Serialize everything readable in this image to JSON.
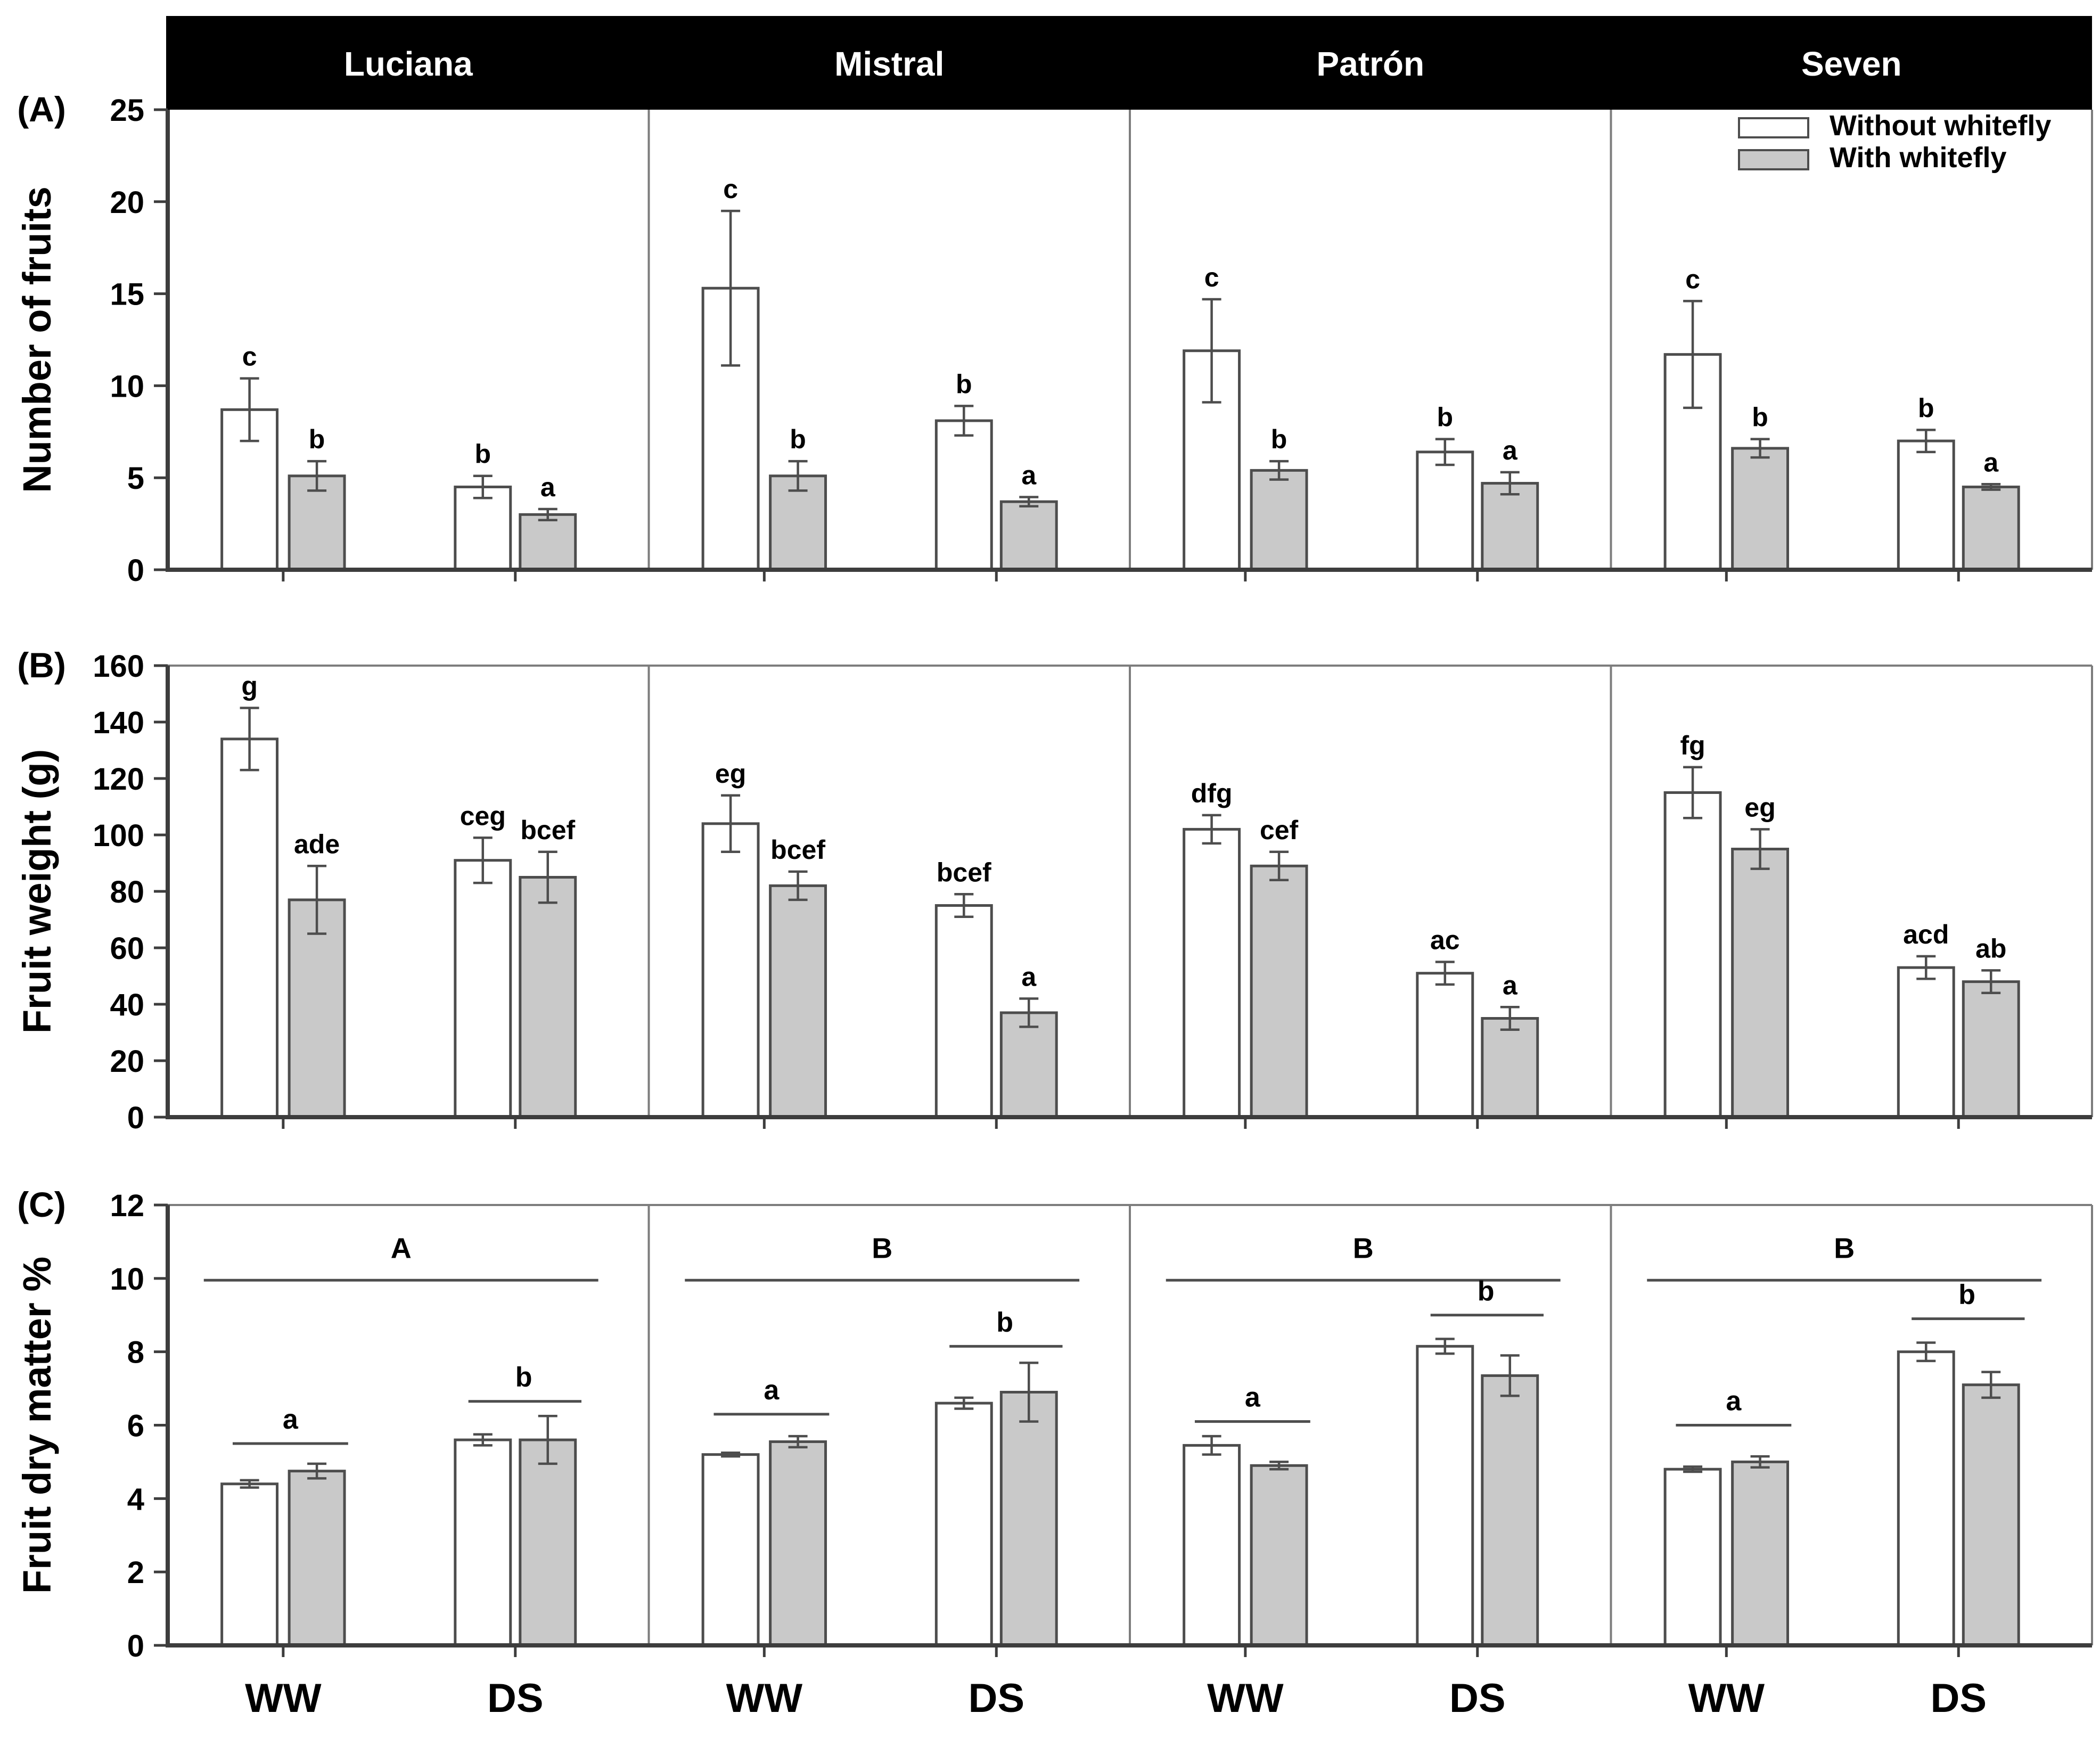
{
  "figure": {
    "cultivars": [
      "Luciana",
      "Mistral",
      "Patrón",
      "Seven"
    ],
    "treatments": [
      "WW",
      "DS"
    ],
    "legend": {
      "items": [
        {
          "label": "Without whitefly",
          "key": "without-whitefly",
          "fill": "#ffffff"
        },
        {
          "label": "With whitefly",
          "key": "with-whitefly",
          "fill": "#c9c9c9"
        }
      ]
    },
    "colors": {
      "without_fill": "#ffffff",
      "with_fill": "#c9c9c9",
      "bar_border": "#4d4d4d",
      "error_bar": "#4d4d4d",
      "axis": "#3d3d3d",
      "panel_border": "#7d7d7d",
      "sig_line": "#4d4d4d",
      "header_bg": "#000000",
      "header_text": "#ffffff",
      "text": "#000000"
    }
  },
  "chart_data": [
    {
      "type": "bar",
      "panel_label": "(A)",
      "ylabel": "Number of fruits",
      "ylim": [
        0,
        25
      ],
      "yticks": [
        0,
        5,
        10,
        15,
        20,
        25
      ],
      "group_labels": [
        "WW",
        "DS"
      ],
      "series": [
        "Without whitefly",
        "With whitefly"
      ],
      "bar_order": [
        "WW Without whitefly",
        "WW With whitefly",
        "DS Without whitefly",
        "DS With whitefly"
      ],
      "cultivars": [
        {
          "name": "Luciana",
          "values": [
            8.7,
            5.1,
            4.5,
            3.0
          ],
          "errors": [
            1.7,
            0.8,
            0.6,
            0.3
          ],
          "letters": [
            "c",
            "b",
            "b",
            "a"
          ]
        },
        {
          "name": "Mistral",
          "values": [
            15.3,
            5.1,
            8.1,
            3.7
          ],
          "errors": [
            4.2,
            0.8,
            0.8,
            0.25
          ],
          "letters": [
            "c",
            "b",
            "b",
            "a"
          ]
        },
        {
          "name": "Patrón",
          "values": [
            11.9,
            5.4,
            6.4,
            4.7
          ],
          "errors": [
            2.8,
            0.5,
            0.7,
            0.6
          ],
          "letters": [
            "c",
            "b",
            "b",
            "a"
          ]
        },
        {
          "name": "Seven",
          "values": [
            11.7,
            6.6,
            7.0,
            4.5
          ],
          "errors": [
            2.9,
            0.5,
            0.6,
            0.15
          ],
          "letters": [
            "c",
            "b",
            "b",
            "a"
          ]
        }
      ],
      "show_legend": true
    },
    {
      "type": "bar",
      "panel_label": "(B)",
      "ylabel": "Fruit weight (g)",
      "ylim": [
        0,
        160
      ],
      "yticks": [
        0,
        20,
        40,
        60,
        80,
        100,
        120,
        140,
        160
      ],
      "group_labels": [
        "WW",
        "DS"
      ],
      "series": [
        "Without whitefly",
        "With whitefly"
      ],
      "bar_order": [
        "WW Without whitefly",
        "WW With whitefly",
        "DS Without whitefly",
        "DS With whitefly"
      ],
      "cultivars": [
        {
          "name": "Luciana",
          "values": [
            134,
            77,
            91,
            85
          ],
          "errors": [
            11,
            12,
            8,
            9
          ],
          "letters": [
            "g",
            "ade",
            "ceg",
            "bcef"
          ]
        },
        {
          "name": "Mistral",
          "values": [
            104,
            82,
            75,
            37
          ],
          "errors": [
            10,
            5,
            4,
            5
          ],
          "letters": [
            "eg",
            "bcef",
            "bcef",
            "a"
          ]
        },
        {
          "name": "Patrón",
          "values": [
            102,
            89,
            51,
            35
          ],
          "errors": [
            5,
            5,
            4,
            4
          ],
          "letters": [
            "dfg",
            "cef",
            "ac",
            "a"
          ]
        },
        {
          "name": "Seven",
          "values": [
            115,
            95,
            53,
            48
          ],
          "errors": [
            9,
            7,
            4,
            4
          ],
          "letters": [
            "fg",
            "eg",
            "acd",
            "ab"
          ]
        }
      ],
      "show_legend": false
    },
    {
      "type": "bar",
      "panel_label": "(C)",
      "ylabel": "Fruit dry matter %",
      "ylim": [
        0,
        12
      ],
      "yticks": [
        0,
        2,
        4,
        6,
        8,
        10,
        12
      ],
      "group_labels": [
        "WW",
        "DS"
      ],
      "series": [
        "Without whitefly",
        "With whitefly"
      ],
      "bar_order": [
        "WW Without whitefly",
        "WW With whitefly",
        "DS Without whitefly",
        "DS With whitefly"
      ],
      "x_tick_labels": [
        "WW",
        "DS"
      ],
      "panel_line_y": 9.95,
      "group_letters": [
        "a",
        "b"
      ],
      "cultivars": [
        {
          "name": "Luciana",
          "values": [
            4.4,
            4.75,
            5.6,
            5.6
          ],
          "errors": [
            0.1,
            0.2,
            0.15,
            0.65
          ],
          "panel_letter": "A",
          "group_line_y": [
            5.5,
            6.65
          ]
        },
        {
          "name": "Mistral",
          "values": [
            5.2,
            5.55,
            6.6,
            6.9
          ],
          "errors": [
            0.05,
            0.15,
            0.15,
            0.8
          ],
          "panel_letter": "B",
          "group_line_y": [
            6.3,
            8.15
          ]
        },
        {
          "name": "Patrón",
          "values": [
            5.45,
            4.9,
            8.15,
            7.35
          ],
          "errors": [
            0.25,
            0.1,
            0.2,
            0.55
          ],
          "panel_letter": "B",
          "group_line_y": [
            6.1,
            9.0
          ]
        },
        {
          "name": "Seven",
          "values": [
            4.8,
            5.0,
            8.0,
            7.1
          ],
          "errors": [
            0.07,
            0.15,
            0.25,
            0.35
          ],
          "panel_letter": "B",
          "group_line_y": [
            6.0,
            8.9
          ]
        }
      ],
      "show_legend": false
    }
  ]
}
